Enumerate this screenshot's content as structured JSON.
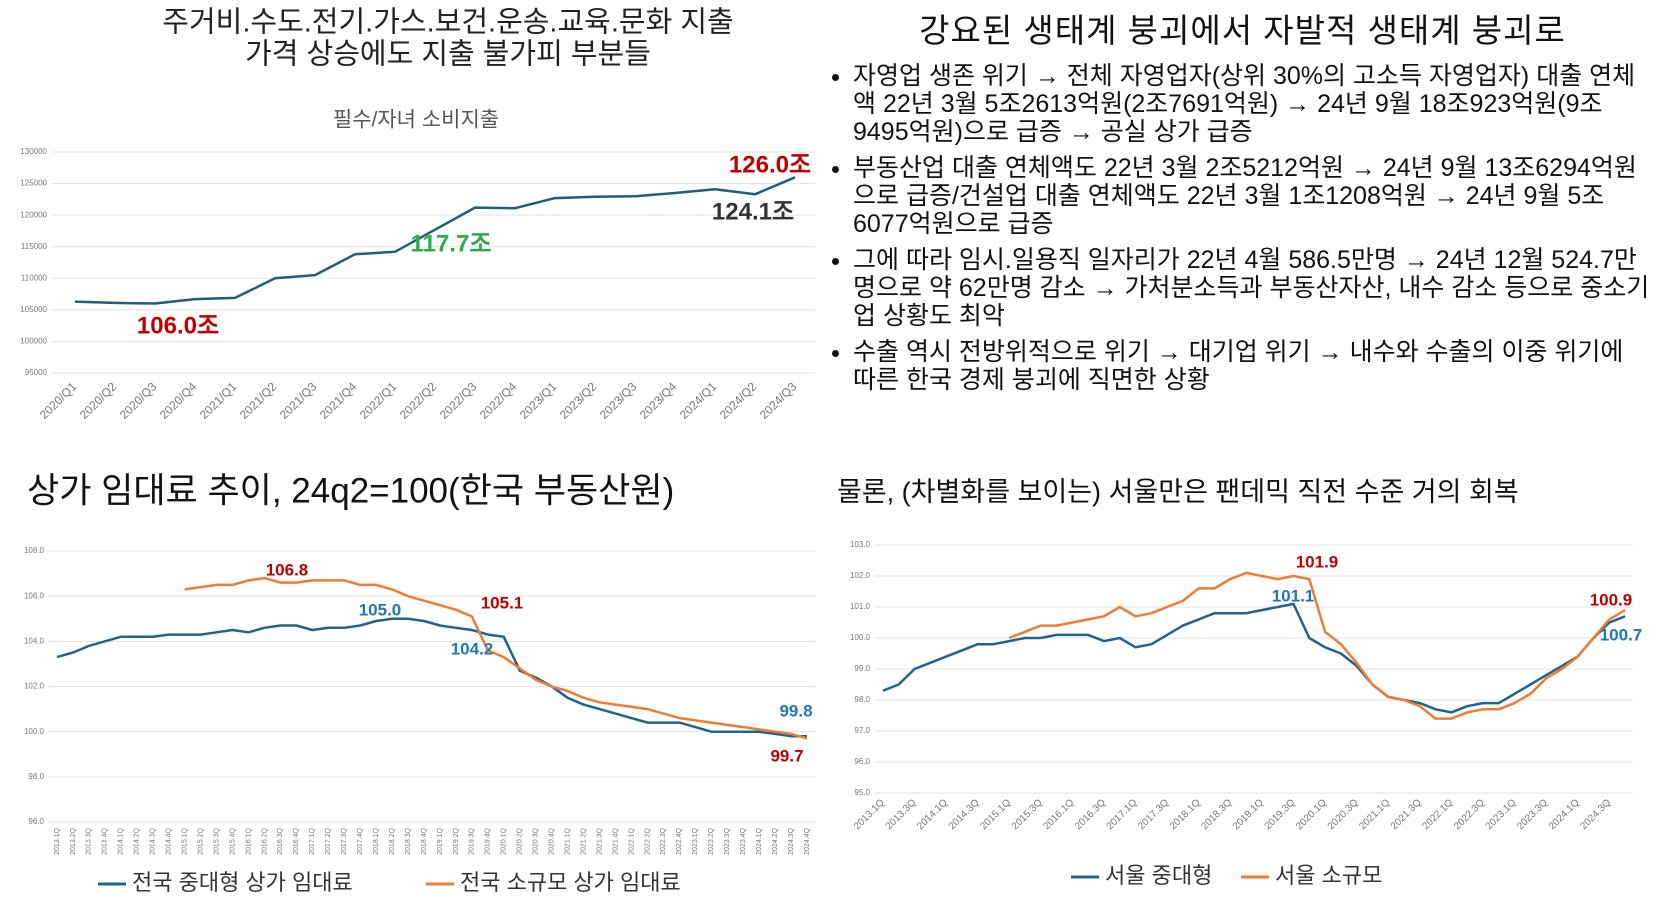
{
  "left_heading": [
    "주거비.수도.전기.가스.보건.운송.교육.문화 지출",
    "가격 상승에도 지출 불가피 부분들"
  ],
  "text_panel": {
    "title": "강요된 생태계 붕괴에서 자발적 생태계 붕괴로",
    "bullets": [
      "자영업 생존 위기 → 전체 자영업자(상위 30%의 고소득 자영업자) 대출 연체액 22년 3월 5조2613억원(2조7691억원) → 24년 9월 18조923억원(9조9495억원)으로 급증 → 공실 상가 급증",
      "부동산업 대출 연체액도 22년 3월 2조5212억원 → 24년 9월 13조6294억원으로 급증/건설업 대출 연체액도 22년 3월 1조1208억원 → 24년 9월 5조6077억원으로 급증",
      "그에 따라 임시.일용직 일자리가 22년 4월 586.5만명 →  24년 12월 524.7만명으로 약 62만명 감소 → 가처분소득과 부동산자산, 내수 감소 등으로 중소기업 상황도 최악",
      "수출 역시 전방위적으로 위기 → 대기업 위기 → 내수와 수출의 이중 위기에 따른 한국 경제 붕괴에 직면한 상황"
    ]
  },
  "chart_data": [
    {
      "type": "line",
      "title": "필수/자녀 소비지출",
      "categories": [
        "2020/Q1",
        "2020/Q2",
        "2020/Q3",
        "2020/Q4",
        "2021/Q1",
        "2021/Q2",
        "2021/Q3",
        "2021/Q4",
        "2022/Q1",
        "2022/Q2",
        "2022/Q3",
        "2022/Q4",
        "2023/Q1",
        "2023/Q2",
        "2023/Q3",
        "2023/Q4",
        "2024/Q1",
        "2024/Q2",
        "2024/Q3"
      ],
      "series": [
        {
          "color": "#1f5f7a",
          "values": [
            106300,
            106100,
            106000,
            106700,
            106900,
            110000,
            110500,
            113800,
            114200,
            117700,
            121200,
            121100,
            122700,
            122900,
            123000,
            123500,
            124100,
            123300,
            126000
          ]
        }
      ],
      "ylim": [
        95000,
        130000
      ],
      "yticks": [
        95000,
        100000,
        105000,
        110000,
        115000,
        120000,
        125000,
        130000
      ],
      "grid": true,
      "annotations": [
        {
          "text": "126.0조",
          "color": "#c00000"
        },
        {
          "text": "124.1조",
          "color": "#333333"
        },
        {
          "text": "117.7조",
          "color": "#2eaa4a"
        },
        {
          "text": "106.0조",
          "color": "#c00000"
        }
      ]
    },
    {
      "type": "line",
      "title": "상가 임대료 추이, 24q2=100(한국 부동산원)",
      "categories": [
        "2013.1Q",
        "2013.2Q",
        "2013.3Q",
        "2013.4Q",
        "2014.1Q",
        "2014.2Q",
        "2014.3Q",
        "2014.4Q",
        "2015.1Q",
        "2015.2Q",
        "2015.3Q",
        "2015.4Q",
        "2016.1Q",
        "2016.2Q",
        "2016.3Q",
        "2016.4Q",
        "2017.1Q",
        "2017.2Q",
        "2017.3Q",
        "2017.4Q",
        "2018.1Q",
        "2018.2Q",
        "2018.3Q",
        "2018.4Q",
        "2019.1Q",
        "2019.2Q",
        "2019.3Q",
        "2019.4Q",
        "2020.1Q",
        "2020.2Q",
        "2020.3Q",
        "2020.4Q",
        "2021.1Q",
        "2021.2Q",
        "2021.3Q",
        "2021.4Q",
        "2022.1Q",
        "2022.2Q",
        "2022.3Q",
        "2022.4Q",
        "2023.1Q",
        "2023.2Q",
        "2023.3Q",
        "2023.4Q",
        "2024.1Q",
        "2024.2Q",
        "2024.3Q",
        "2024.4Q"
      ],
      "series": [
        {
          "name": "전국 중대형 상가 임대료",
          "color": "#1f6390",
          "values": [
            103.3,
            103.5,
            103.8,
            104.0,
            104.2,
            104.2,
            104.2,
            104.3,
            104.3,
            104.3,
            104.4,
            104.5,
            104.4,
            104.6,
            104.7,
            104.7,
            104.5,
            104.6,
            104.6,
            104.7,
            104.9,
            105.0,
            105.0,
            104.9,
            104.7,
            104.6,
            104.5,
            104.3,
            104.2,
            102.7,
            102.4,
            102.0,
            101.5,
            101.2,
            101.0,
            100.8,
            100.6,
            100.4,
            100.4,
            100.4,
            100.2,
            100.0,
            100.0,
            100.0,
            100.0,
            99.9,
            99.8,
            99.8
          ]
        },
        {
          "name": "전국 소규모 상가 임대료",
          "color": "#ed7d31",
          "values": [
            null,
            null,
            null,
            null,
            null,
            null,
            null,
            null,
            106.3,
            106.4,
            106.5,
            106.5,
            106.7,
            106.8,
            106.6,
            106.6,
            106.7,
            106.7,
            106.7,
            106.5,
            106.5,
            106.3,
            106.0,
            105.8,
            105.6,
            105.4,
            105.1,
            103.6,
            103.3,
            102.8,
            102.3,
            102.0,
            101.8,
            101.5,
            101.3,
            101.2,
            101.1,
            101.0,
            100.8,
            100.6,
            100.5,
            100.4,
            100.3,
            100.2,
            100.1,
            100.0,
            99.9,
            99.7
          ]
        }
      ],
      "ylim": [
        96,
        108
      ],
      "yticks": [
        {
          "value": 96,
          "label": "96.0"
        },
        {
          "value": 98,
          "label": "98.0"
        },
        {
          "value": 100,
          "label": "100.0"
        },
        {
          "value": 102,
          "label": "102.0"
        },
        {
          "value": 104,
          "label": "104.0"
        },
        {
          "value": 106,
          "label": "106.0"
        },
        {
          "value": 108,
          "label": "108.0"
        }
      ],
      "grid": true,
      "annotations": [
        {
          "text": "106.8",
          "color": "#c00000"
        },
        {
          "text": "105.0",
          "color": "#1f77b4"
        },
        {
          "text": "105.1",
          "color": "#c00000"
        },
        {
          "text": "104.2",
          "color": "#1f77b4"
        },
        {
          "text": "99.8",
          "color": "#1f77b4"
        },
        {
          "text": "99.7",
          "color": "#c00000"
        }
      ]
    },
    {
      "type": "line",
      "title": "물론, (차별화를 보이는) 서울만은 팬데믹 직전 수준 거의 회복",
      "categories": [
        "2013.1Q",
        null,
        "2013.3Q",
        null,
        "2014.1Q",
        null,
        "2014.3Q",
        null,
        "2015.1Q",
        null,
        "2015.3Q",
        null,
        "2016.1Q",
        null,
        "2016.3Q",
        null,
        "2017.1Q",
        null,
        "2017.3Q",
        null,
        "2018.1Q",
        null,
        "2018.3Q",
        null,
        "2019.1Q",
        null,
        "2019.3Q",
        null,
        "2020.1Q",
        null,
        "2020.3Q",
        null,
        "2021.1Q",
        null,
        "2021.3Q",
        null,
        "2022.1Q",
        null,
        "2022.3Q",
        null,
        "2023.1Q",
        null,
        "2023.3Q",
        null,
        "2024.1Q",
        null,
        "2024.3Q",
        null
      ],
      "series": [
        {
          "name": "서울 중대형",
          "color": "#1f6390",
          "values": [
            98.3,
            98.5,
            99.0,
            99.2,
            99.4,
            99.6,
            99.8,
            99.8,
            99.9,
            100.0,
            100.0,
            100.1,
            100.1,
            100.1,
            99.9,
            100.0,
            99.7,
            99.8,
            100.1,
            100.4,
            100.6,
            100.8,
            100.8,
            100.8,
            100.9,
            101.0,
            101.1,
            100.0,
            99.7,
            99.5,
            99.1,
            98.5,
            98.1,
            98.0,
            97.9,
            97.7,
            97.6,
            97.8,
            97.9,
            97.9,
            98.2,
            98.5,
            98.8,
            99.1,
            99.4,
            100.0,
            100.5,
            100.7
          ]
        },
        {
          "name": "서울 소규모",
          "color": "#ed7d31",
          "values": [
            null,
            null,
            null,
            null,
            null,
            null,
            null,
            null,
            100.0,
            100.2,
            100.4,
            100.4,
            100.5,
            100.6,
            100.7,
            101.0,
            100.7,
            100.8,
            101.0,
            101.2,
            101.6,
            101.6,
            101.9,
            102.1,
            102.0,
            101.9,
            102.0,
            101.9,
            100.2,
            99.8,
            99.2,
            98.5,
            98.1,
            98.0,
            97.8,
            97.4,
            97.4,
            97.6,
            97.7,
            97.7,
            97.9,
            98.2,
            98.7,
            99.0,
            99.4,
            100.0,
            100.6,
            100.9
          ]
        }
      ],
      "ylim": [
        95,
        103
      ],
      "yticks": [
        {
          "value": 95,
          "label": "95.0"
        },
        {
          "value": 96,
          "label": "96.0"
        },
        {
          "value": 97,
          "label": "97.0"
        },
        {
          "value": 98,
          "label": "98.0"
        },
        {
          "value": 99,
          "label": "99.0"
        },
        {
          "value": 100,
          "label": "100.0"
        },
        {
          "value": 101,
          "label": "101.0"
        },
        {
          "value": 102,
          "label": "102.0"
        },
        {
          "value": 103,
          "label": "103.0"
        }
      ],
      "grid": true,
      "annotations": [
        {
          "text": "101.9",
          "color": "#c00000"
        },
        {
          "text": "101.1",
          "color": "#1f77b4"
        },
        {
          "text": "100.9",
          "color": "#c00000"
        },
        {
          "text": "100.7",
          "color": "#1f77b4"
        }
      ]
    }
  ]
}
